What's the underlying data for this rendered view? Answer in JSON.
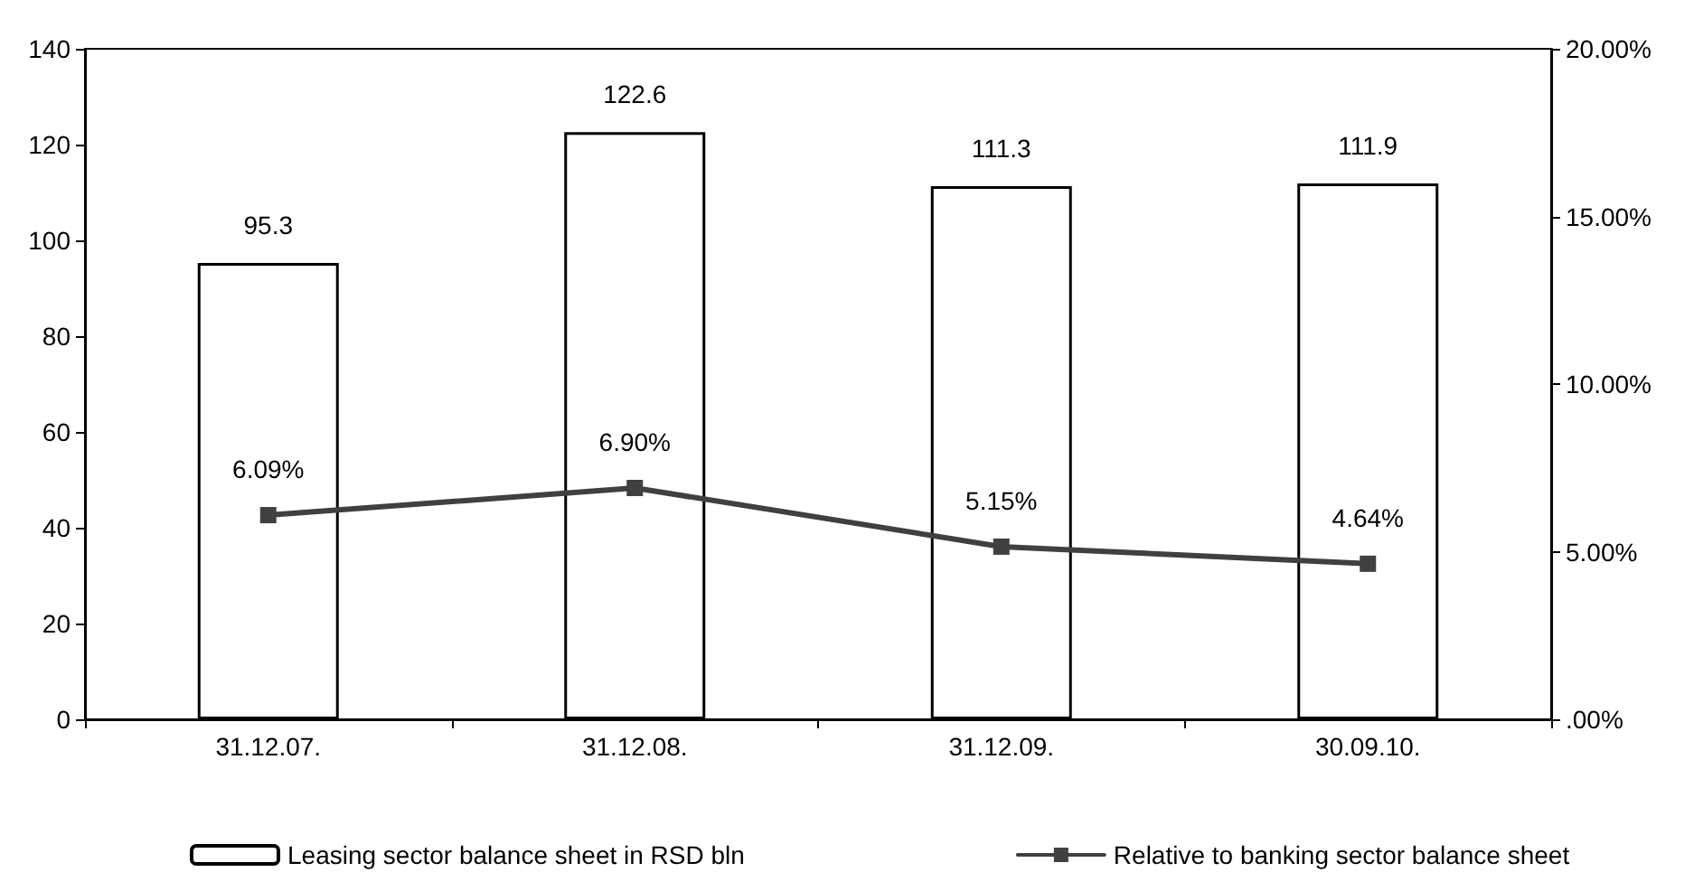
{
  "chart_data": {
    "type": "bar",
    "categories": [
      "31.12.07.",
      "31.12.08.",
      "31.12.09.",
      "30.09.10."
    ],
    "series": [
      {
        "name": "Leasing sector balance sheet in RSD bln",
        "color": "#ffffff",
        "values": [
          95.3,
          122.6,
          111.3,
          111.9
        ],
        "value_labels": [
          "95.3",
          "122.6",
          "111.3",
          "111.9"
        ]
      },
      {
        "name": "Relative to banking sector balance sheet",
        "type": "line",
        "axis": "y2",
        "color": "#404040",
        "marker": "square",
        "values": [
          6.09,
          6.9,
          5.15,
          4.64
        ],
        "value_labels": [
          "6.09%",
          "6.90%",
          "5.15%",
          "4.64%"
        ]
      }
    ],
    "ylim": [
      0,
      140
    ],
    "yticks": [
      0,
      20,
      40,
      60,
      80,
      100,
      120,
      140
    ],
    "y2lim": [
      0,
      20
    ],
    "y2ticks": [
      {
        "value": 0,
        "label": ".00%"
      },
      {
        "value": 5,
        "label": "5.00%"
      },
      {
        "value": 10,
        "label": "10.00%"
      },
      {
        "value": 15,
        "label": "15.00%"
      },
      {
        "value": 20,
        "label": "20.00%"
      }
    ],
    "grid": false,
    "legend": "bottom"
  }
}
